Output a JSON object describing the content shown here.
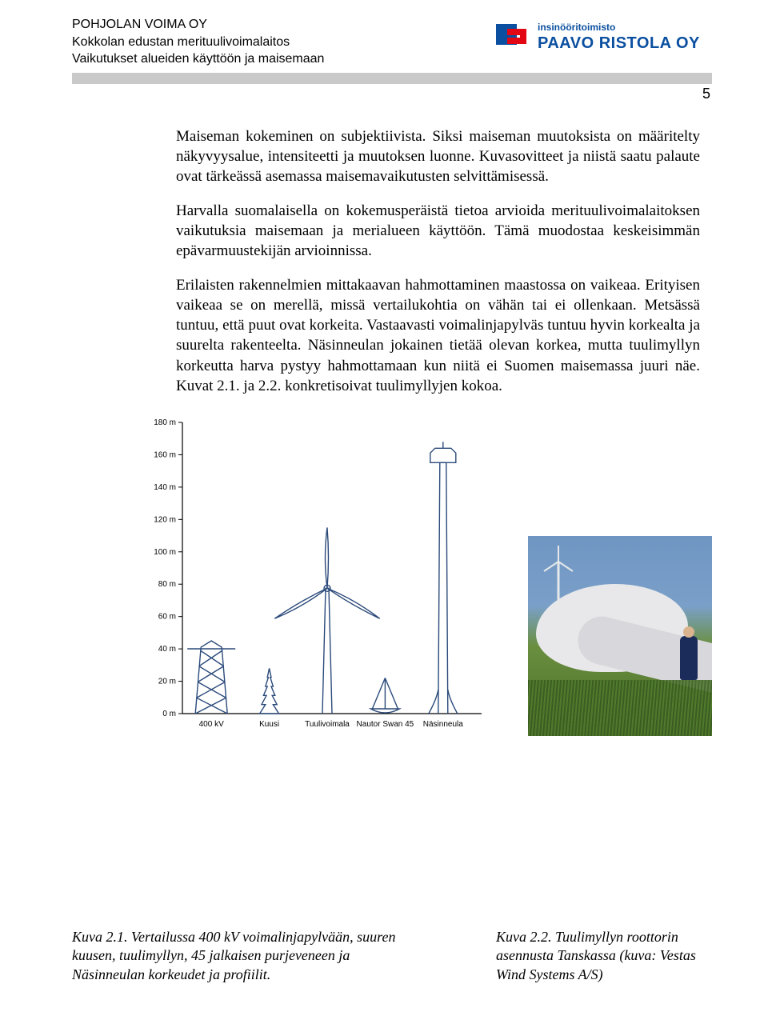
{
  "header": {
    "line1": "POHJOLAN VOIMA OY",
    "line2": "Kokkolan edustan merituulivoimalaitos",
    "line3": "Vaikutukset alueiden käyttöön ja maisemaan",
    "logo_line1": "insinööritoimisto",
    "logo_line2": "PAAVO RISTOLA OY",
    "logo_color": "#0a4fa0",
    "logo_accent": "#e30613"
  },
  "page_number": "5",
  "paragraphs": [
    "Maiseman kokeminen on subjektiivista. Siksi maiseman muutoksista on määritelty näkyvyysalue, intensiteetti ja muutoksen luonne. Kuvasovitteet ja niistä saatu palaute ovat tärkeässä asemassa maisemavaikutusten selvittämisessä.",
    "Harvalla suomalaisella on kokemusperäistä tietoa arvioida merituulivoimalaitoksen vaikutuksia maisemaan ja merialueen käyttöön. Tämä muodostaa keskeisimmän epävarmuustekijän arvioinnissa.",
    "Erilaisten rakennelmien mittakaavan hahmottaminen maastossa on vaikeaa. Erityisen vaikeaa se on merellä, missä vertailukohtia on vähän tai ei ollenkaan. Metsässä tuntuu, että puut ovat korkeita. Vastaavasti voimalinjapylväs tuntuu hyvin korkealta ja suurelta rakenteelta. Näsinneulan jokainen tietää olevan korkea, mutta tuulimyllyn korkeutta harva pystyy hahmottamaan kun niitä ei Suomen maisemassa juuri näe. Kuvat 2.1. ja 2.2. konkretisoivat tuulimyllyjen kokoa."
  ],
  "chart": {
    "type": "comparison-silhouette",
    "y_axis": {
      "min": 0,
      "max": 180,
      "step": 20,
      "unit": "m",
      "ticks": [
        0,
        20,
        40,
        60,
        80,
        100,
        120,
        140,
        160,
        180
      ],
      "tick_labels": [
        "0 m",
        "20 m",
        "40 m",
        "60 m",
        "80 m",
        "100 m",
        "120 m",
        "140 m",
        "160 m",
        "180 m"
      ]
    },
    "x_items": [
      {
        "key": "pylon",
        "label": "400 kV",
        "height_m": 45
      },
      {
        "key": "spruce",
        "label": "Kuusi",
        "height_m": 28
      },
      {
        "key": "turbine",
        "label": "Tuulivoimala",
        "height_m": 115,
        "rotor_diameter_m": 75
      },
      {
        "key": "sailboat",
        "label": "Nautor Swan 45",
        "height_m": 22
      },
      {
        "key": "tower",
        "label": "Näsinneula",
        "height_m": 168
      }
    ],
    "stroke_color": "#2b4a7a",
    "axis_color": "#000000",
    "background_color": "#ffffff",
    "label_fontsize": 10
  },
  "caption_left": "Kuva 2.1. Vertailussa 400 kV voimalinjapylvään, suuren kuusen, tuulimyllyn, 45 jalkaisen purjeveneen ja Näsinneulan korkeudet ja profiilit.",
  "caption_right": "Kuva 2.2. Tuulimyllyn roottorin asennusta Tanskassa (kuva: Vestas Wind Systems A/S)"
}
